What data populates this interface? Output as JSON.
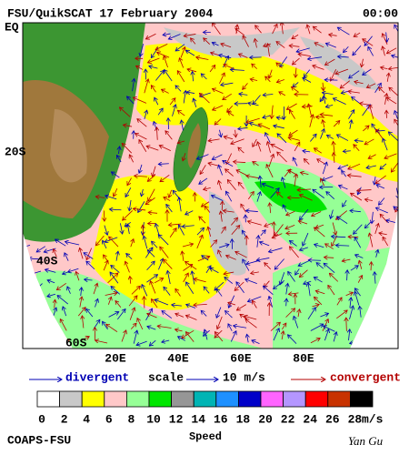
{
  "header": {
    "title": "FSU/QuikSCAT  17 February 2004",
    "time": "00:00"
  },
  "map": {
    "lat_labels": [
      "EQ",
      "20S",
      "40S",
      "60S"
    ],
    "lon_labels": [
      "20E",
      "40E",
      "60E",
      "80E"
    ]
  },
  "legend": {
    "divergent": "divergent",
    "scale": "scale",
    "scale_value": "10 m/s",
    "convergent": "convergent"
  },
  "colorbar": {
    "labels": [
      0,
      2,
      4,
      6,
      8,
      10,
      12,
      14,
      16,
      18,
      20,
      22,
      24,
      26,
      28
    ],
    "unit": "m/s",
    "title": "Speed"
  },
  "footer": {
    "left": "COAPS-FSU",
    "right": "Yan Gu"
  }
}
